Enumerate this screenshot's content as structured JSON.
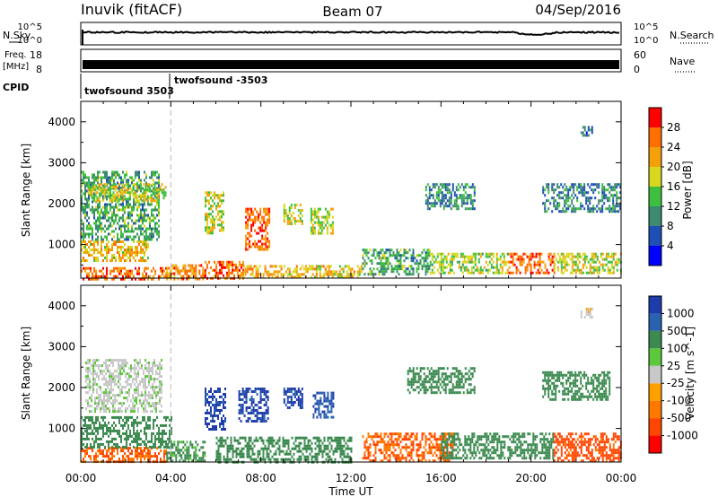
{
  "header": {
    "station": "Inuvik (fitACF)",
    "beam": "Beam 07",
    "date": "04/Sep/2016"
  },
  "colors": {
    "power_scale": [
      "#0000ff",
      "#1e4fb4",
      "#3c8a70",
      "#3fbf3f",
      "#d7d71e",
      "#f5a00a",
      "#ff6e00",
      "#ff0000"
    ],
    "velocity_scale": [
      "#1e3caa",
      "#2a62b0",
      "#3c8a50",
      "#5cc83c",
      "#c8c8c8",
      "#ffa000",
      "#ff7800",
      "#ff4600",
      "#ff0000"
    ],
    "noise_line": "#000000"
  },
  "top_panels": {
    "nsky": {
      "left_label": "N.Sky",
      "right_label": "N.Search",
      "right_label_style": "dotted",
      "left_ticks": [
        "10^5",
        "10^0"
      ],
      "right_ticks": [
        "10^5",
        "10^0"
      ]
    },
    "freq": {
      "left_label_1": "Freq.",
      "left_label_2": "[MHz]",
      "right_label": "Nave",
      "right_label_style": "dotted",
      "left_ticks": [
        "18",
        "8"
      ],
      "right_ticks": [
        "60",
        "0"
      ]
    },
    "cpid": {
      "label": "CPID",
      "programs": [
        {
          "name": "twofsound 3503",
          "start_hour": 0.0
        },
        {
          "name": "twofsound -3503",
          "start_hour": 4.0
        }
      ]
    }
  },
  "chart_data": [
    {
      "type": "heatmap",
      "title": "",
      "quantity": "Power",
      "xlabel": "",
      "ylabel": "Slant Range [km]",
      "xlim": [
        0,
        24
      ],
      "ylim": [
        180,
        4500
      ],
      "x_ticks": [
        "00:00",
        "04:00",
        "08:00",
        "12:00",
        "16:00",
        "20:00",
        "00:00"
      ],
      "y_ticks": [
        "1000",
        "2000",
        "3000",
        "4000"
      ],
      "colorbar": {
        "label": "Power [dB]",
        "ticks": [
          "28",
          "24",
          "20",
          "16",
          "12",
          "8",
          "4"
        ],
        "range": [
          0,
          32
        ]
      },
      "echo_regions": [
        {
          "t": [
            0.0,
            3.8
          ],
          "r": [
            180,
            450
          ],
          "power": 26
        },
        {
          "t": [
            3.8,
            5.5
          ],
          "r": [
            180,
            520
          ],
          "power": 24
        },
        {
          "t": [
            5.5,
            7.2
          ],
          "r": [
            180,
            600
          ],
          "power": 26
        },
        {
          "t": [
            7.2,
            9.0
          ],
          "r": [
            180,
            500
          ],
          "power": 22
        },
        {
          "t": [
            9.0,
            12.5
          ],
          "r": [
            180,
            500
          ],
          "power": 20
        },
        {
          "t": [
            12.5,
            15.5
          ],
          "r": [
            300,
            900
          ],
          "power": 12
        },
        {
          "t": [
            15.5,
            19.0
          ],
          "r": [
            300,
            800
          ],
          "power": 16
        },
        {
          "t": [
            19.0,
            21.0
          ],
          "r": [
            300,
            800
          ],
          "power": 26
        },
        {
          "t": [
            21.0,
            24.0
          ],
          "r": [
            300,
            800
          ],
          "power": 18
        },
        {
          "t": [
            0.0,
            3.0
          ],
          "r": [
            600,
            1100
          ],
          "power": 20
        },
        {
          "t": [
            0.0,
            3.5
          ],
          "r": [
            1100,
            2800
          ],
          "power": 12
        },
        {
          "t": [
            0.3,
            3.8
          ],
          "r": [
            2100,
            2500
          ],
          "power": 18
        },
        {
          "t": [
            5.5,
            6.3
          ],
          "r": [
            1300,
            2300
          ],
          "power": 18
        },
        {
          "t": [
            7.3,
            8.4
          ],
          "r": [
            900,
            1900
          ],
          "power": 26
        },
        {
          "t": [
            9.0,
            9.8
          ],
          "r": [
            1500,
            2000
          ],
          "power": 18
        },
        {
          "t": [
            10.2,
            11.2
          ],
          "r": [
            1300,
            1900
          ],
          "power": 18
        },
        {
          "t": [
            15.3,
            17.5
          ],
          "r": [
            1900,
            2500
          ],
          "power": 10
        },
        {
          "t": [
            20.5,
            24.0
          ],
          "r": [
            1800,
            2500
          ],
          "power": 9
        },
        {
          "t": [
            22.2,
            22.7
          ],
          "r": [
            3650,
            3900
          ],
          "power": 8
        }
      ]
    },
    {
      "type": "heatmap",
      "title": "",
      "quantity": "Velocity",
      "xlabel": "Time UT",
      "ylabel": "Slant Range [km]",
      "xlim": [
        0,
        24
      ],
      "ylim": [
        180,
        4500
      ],
      "x_ticks": [
        "00:00",
        "04:00",
        "08:00",
        "12:00",
        "16:00",
        "20:00",
        "00:00"
      ],
      "y_ticks": [
        "1000",
        "2000",
        "3000",
        "4000"
      ],
      "colorbar": {
        "label": "Velocity [m s^-1]",
        "ticks": [
          "1000",
          "500",
          "100",
          "25",
          "-25",
          "-100",
          "-500",
          "-1000"
        ]
      },
      "echo_regions": [
        {
          "t": [
            0.0,
            3.8
          ],
          "r": [
            180,
            550
          ],
          "velocity": -300
        },
        {
          "t": [
            0.0,
            4.0
          ],
          "r": [
            550,
            1300
          ],
          "velocity": 150
        },
        {
          "t": [
            0.2,
            3.6
          ],
          "r": [
            1400,
            2700
          ],
          "velocity": 10
        },
        {
          "t": [
            3.8,
            5.5
          ],
          "r": [
            180,
            700
          ],
          "velocity": 80
        },
        {
          "t": [
            5.5,
            6.4
          ],
          "r": [
            1000,
            2000
          ],
          "velocity": 900
        },
        {
          "t": [
            7.0,
            8.3
          ],
          "r": [
            1200,
            2000
          ],
          "velocity": 900
        },
        {
          "t": [
            9.0,
            9.8
          ],
          "r": [
            1500,
            2000
          ],
          "velocity": 900
        },
        {
          "t": [
            10.3,
            11.2
          ],
          "r": [
            1300,
            1900
          ],
          "velocity": 700
        },
        {
          "t": [
            6.0,
            12.0
          ],
          "r": [
            180,
            800
          ],
          "velocity": 150
        },
        {
          "t": [
            12.5,
            16.5
          ],
          "r": [
            200,
            900
          ],
          "velocity": -300
        },
        {
          "t": [
            16.0,
            21.0
          ],
          "r": [
            300,
            900
          ],
          "velocity": 150
        },
        {
          "t": [
            21.0,
            24.0
          ],
          "r": [
            200,
            900
          ],
          "velocity": -400
        },
        {
          "t": [
            14.5,
            17.5
          ],
          "r": [
            1900,
            2500
          ],
          "velocity": 150
        },
        {
          "t": [
            20.5,
            23.5
          ],
          "r": [
            1700,
            2400
          ],
          "velocity": 150
        },
        {
          "t": [
            22.2,
            22.7
          ],
          "r": [
            3700,
            3950
          ],
          "velocity": 0
        }
      ]
    }
  ],
  "x_axis_title": "Time UT",
  "ylabel": "Slant Range [km]"
}
